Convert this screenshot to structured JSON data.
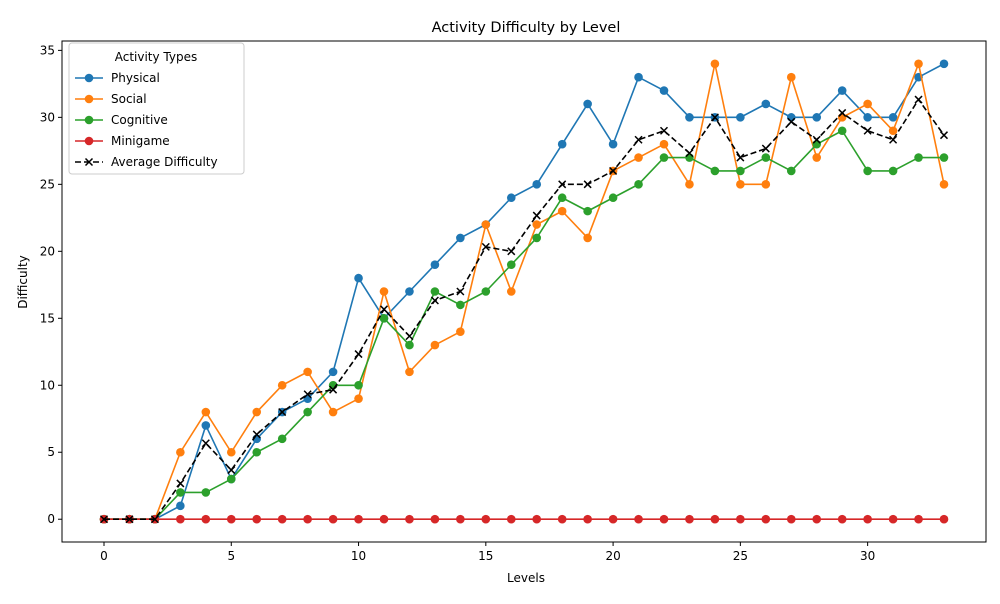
{
  "chart_data": {
    "type": "line",
    "title": "Activity Difficulty by Level",
    "xlabel": "Levels",
    "ylabel": "Difficulty",
    "xlim": [
      -1.65,
      34.65
    ],
    "ylim": [
      -1.7,
      35.7
    ],
    "xticks": [
      0,
      5,
      10,
      15,
      20,
      25,
      30
    ],
    "yticks": [
      0,
      5,
      10,
      15,
      20,
      25,
      30,
      35
    ],
    "grid": false,
    "legend": {
      "title": "Activity Types",
      "placement": "top-left"
    },
    "x": [
      0,
      1,
      2,
      3,
      4,
      5,
      6,
      7,
      8,
      9,
      10,
      11,
      12,
      13,
      14,
      15,
      16,
      17,
      18,
      19,
      20,
      21,
      22,
      23,
      24,
      25,
      26,
      27,
      28,
      29,
      30,
      31,
      32,
      33
    ],
    "series": [
      {
        "name": "Physical",
        "color": "#1f77b4",
        "marker": "circle",
        "dash": false,
        "values": [
          0,
          0,
          0,
          1,
          7,
          3,
          6,
          8,
          9,
          11,
          18,
          15,
          17,
          19,
          21,
          22,
          24,
          25,
          28,
          31,
          28,
          33,
          32,
          30,
          30,
          30,
          31,
          30,
          30,
          32,
          30,
          30,
          33,
          34
        ]
      },
      {
        "name": "Social",
        "color": "#ff7f0e",
        "marker": "circle",
        "dash": false,
        "values": [
          0,
          0,
          0,
          5,
          8,
          5,
          8,
          10,
          11,
          8,
          9,
          17,
          11,
          13,
          14,
          22,
          17,
          22,
          23,
          21,
          26,
          27,
          28,
          25,
          34,
          25,
          25,
          33,
          27,
          30,
          31,
          29,
          34,
          25
        ]
      },
      {
        "name": "Cognitive",
        "color": "#2ca02c",
        "marker": "circle",
        "dash": false,
        "values": [
          0,
          0,
          0,
          2,
          2,
          3,
          5,
          6,
          8,
          10,
          10,
          15,
          13,
          17,
          16,
          17,
          19,
          21,
          24,
          23,
          24,
          25,
          27,
          27,
          26,
          26,
          27,
          26,
          28,
          29,
          26,
          26,
          27,
          27
        ]
      },
      {
        "name": "Minigame",
        "color": "#d62728",
        "marker": "circle",
        "dash": false,
        "values": [
          0,
          0,
          0,
          0,
          0,
          0,
          0,
          0,
          0,
          0,
          0,
          0,
          0,
          0,
          0,
          0,
          0,
          0,
          0,
          0,
          0,
          0,
          0,
          0,
          0,
          0,
          0,
          0,
          0,
          0,
          0,
          0,
          0,
          0
        ]
      },
      {
        "name": "Average Difficulty",
        "color": "#000000",
        "marker": "x",
        "dash": true,
        "values": [
          0,
          0,
          0,
          2.67,
          5.67,
          3.67,
          6.33,
          8,
          9.33,
          9.67,
          12.33,
          15.67,
          13.67,
          16.33,
          17,
          20.33,
          20,
          22.67,
          25,
          25,
          26,
          28.33,
          29,
          27.33,
          30,
          27,
          27.67,
          29.67,
          28.33,
          30.33,
          29,
          28.33,
          31.33,
          28.67
        ]
      }
    ]
  }
}
